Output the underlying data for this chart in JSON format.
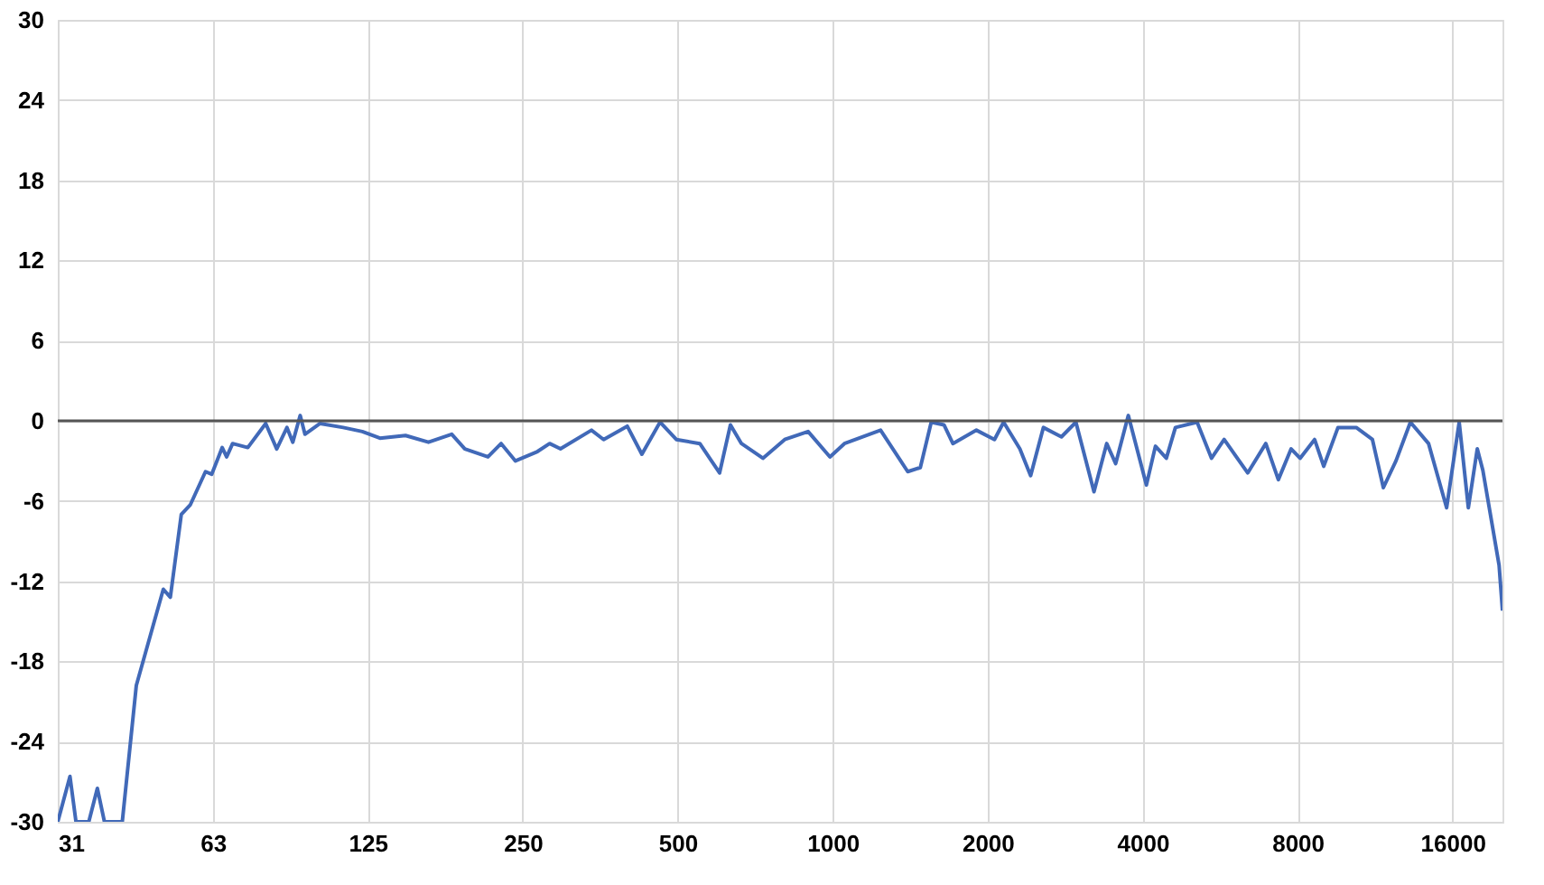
{
  "chart_data": {
    "type": "line",
    "log": "x",
    "grid": true,
    "marker": "none",
    "line_style": "solid",
    "xlim": [
      31.25,
      20000
    ],
    "xticks": [
      {
        "value": 31.25,
        "label": "31"
      },
      {
        "value": 62.5,
        "label": "63"
      },
      125,
      250,
      500,
      1000,
      2000,
      4000,
      8000,
      16000
    ],
    "ylim": [
      -30,
      30
    ],
    "yticks": [
      -30,
      -24,
      -18,
      -12,
      -6,
      0,
      6,
      12,
      18,
      24,
      30
    ],
    "ref_lines": [
      {
        "axis": "y",
        "value": 0,
        "color": "#555555"
      }
    ],
    "series": [
      {
        "color": "#4169b8",
        "x": [
          31.25,
          33.0,
          33.9,
          35.9,
          37.3,
          38.5,
          41.7,
          44.4,
          50.1,
          51.7,
          54.3,
          56.5,
          60.5,
          62.2,
          65.2,
          66.5,
          68.3,
          73.1,
          79.2,
          83.2,
          87.1,
          89.4,
          92.4,
          94.4,
          101,
          112,
          122,
          132,
          148,
          164,
          182,
          193,
          214,
          227,
          242,
          267,
          282,
          296,
          340,
          359,
          399,
          426,
          462,
          497,
          552,
          603,
          633,
          665,
          732,
          807,
          896,
          988,
          1054,
          1239,
          1399,
          1480,
          1554,
          1645,
          1712,
          1902,
          2062,
          2148,
          2310,
          2424,
          2566,
          2782,
          2968,
          3218,
          3406,
          3546,
          3752,
          4068,
          4236,
          4448,
          4632,
          5104,
          5444,
          5760,
          6400,
          6940,
          7340,
          7772,
          8090,
          8632,
          8992,
          9584,
          10400,
          11180,
          11740,
          12420,
          13250,
          14370,
          15580,
          16480,
          17170,
          17870,
          18320,
          18910,
          19700,
          20000
        ],
        "values": [
          -30,
          -26.6,
          -30,
          -30,
          -27.5,
          -30,
          -30,
          -19.8,
          -12.6,
          -13.2,
          -7.0,
          -6.3,
          -3.8,
          -4.0,
          -2.0,
          -2.7,
          -1.7,
          -2.0,
          -0.2,
          -2.1,
          -0.5,
          -1.6,
          0.4,
          -1.0,
          -0.2,
          -0.5,
          -0.8,
          -1.3,
          -1.1,
          -1.6,
          -1.0,
          -2.1,
          -2.7,
          -1.7,
          -3.0,
          -2.3,
          -1.7,
          -2.1,
          -0.7,
          -1.4,
          -0.4,
          -2.5,
          -0.1,
          -1.4,
          -1.7,
          -3.9,
          -0.3,
          -1.7,
          -2.8,
          -1.4,
          -0.8,
          -2.7,
          -1.7,
          -0.7,
          -3.8,
          -3.5,
          -0.1,
          -0.3,
          -1.7,
          -0.7,
          -1.4,
          -0.1,
          -2.1,
          -4.1,
          -0.5,
          -1.2,
          -0.1,
          -5.3,
          -1.7,
          -3.2,
          0.4,
          -4.8,
          -1.9,
          -2.8,
          -0.5,
          -0.1,
          -2.8,
          -1.4,
          -3.9,
          -1.7,
          -4.4,
          -2.1,
          -2.8,
          -1.4,
          -3.4,
          -0.5,
          -0.5,
          -1.4,
          -5.0,
          -3.0,
          -0.1,
          -1.7,
          -6.5,
          -0.1,
          -6.5,
          -2.1,
          -3.7,
          -6.8,
          -10.8,
          -14.2
        ]
      }
    ]
  }
}
